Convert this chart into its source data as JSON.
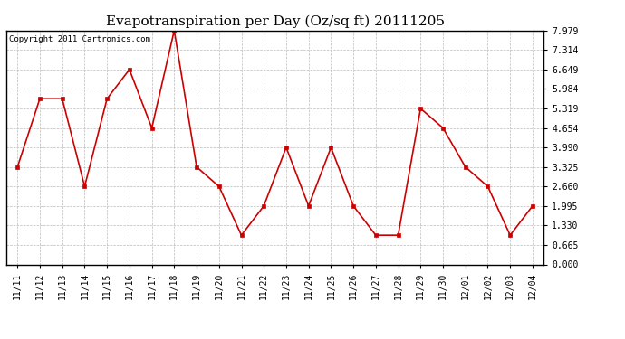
{
  "title": "Evapotranspiration per Day (Oz/sq ft) 20111205",
  "copyright_text": "Copyright 2011 Cartronics.com",
  "x_labels": [
    "11/11",
    "11/12",
    "11/13",
    "11/14",
    "11/15",
    "11/16",
    "11/17",
    "11/18",
    "11/19",
    "11/20",
    "11/21",
    "11/22",
    "11/23",
    "11/24",
    "11/25",
    "11/26",
    "11/27",
    "11/28",
    "11/29",
    "11/30",
    "12/01",
    "12/02",
    "12/03",
    "12/04"
  ],
  "y_values": [
    3.325,
    5.652,
    5.652,
    2.66,
    5.652,
    6.649,
    4.654,
    7.979,
    3.325,
    2.66,
    0.997,
    1.995,
    3.99,
    1.995,
    3.99,
    1.995,
    0.997,
    0.997,
    5.319,
    4.654,
    3.325,
    2.66,
    0.997,
    1.995
  ],
  "y_ticks": [
    0.0,
    0.665,
    1.33,
    1.995,
    2.66,
    3.325,
    3.99,
    4.654,
    5.319,
    5.984,
    6.649,
    7.314,
    7.979
  ],
  "y_min": 0.0,
  "y_max": 7.979,
  "line_color": "#cc0000",
  "marker_color": "#cc0000",
  "bg_color": "#ffffff",
  "grid_color": "#bbbbbb",
  "title_fontsize": 11,
  "tick_fontsize": 7,
  "copyright_fontsize": 6.5
}
